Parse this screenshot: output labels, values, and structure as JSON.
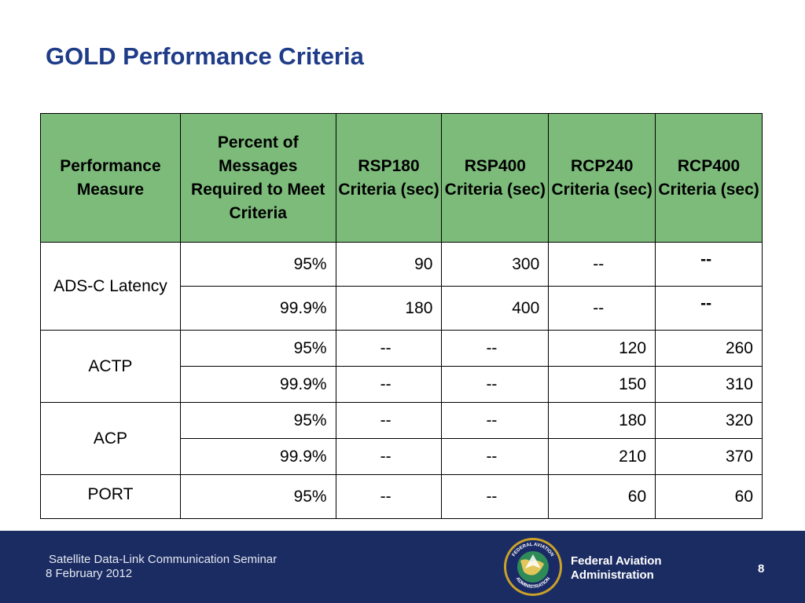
{
  "slide": {
    "title": "GOLD Performance Criteria"
  },
  "table": {
    "headers": [
      "Performance Measure",
      "Percent of Messages Required to Meet Criteria",
      "RSP180 Criteria (sec)",
      "RSP400 Criteria (sec)",
      "RCP240 Criteria (sec)",
      "RCP400 Criteria (sec)"
    ],
    "groups": [
      {
        "measure": "ADS-C Latency",
        "rows": [
          [
            "95%",
            "90",
            "300",
            "--",
            "--"
          ],
          [
            "99.9%",
            "180",
            "400",
            "--",
            "--"
          ]
        ]
      },
      {
        "measure": "ACTP",
        "rows": [
          [
            "95%",
            "--",
            "--",
            "120",
            "260"
          ],
          [
            "99.9%",
            "--",
            "--",
            "150",
            "310"
          ]
        ]
      },
      {
        "measure": "ACP",
        "rows": [
          [
            "95%",
            "--",
            "--",
            "180",
            "320"
          ],
          [
            "99.9%",
            "--",
            "--",
            "210",
            "370"
          ]
        ]
      },
      {
        "measure": "PORT",
        "rows": [
          [
            "95%",
            "--",
            "--",
            "60",
            "60"
          ]
        ]
      }
    ]
  },
  "footer": {
    "seminar": "Satellite Data-Link Communication Seminar",
    "date": "8 February 2012",
    "agency_line1": "Federal Aviation",
    "agency_line2": "Administration",
    "seal_text_top": "FEDERAL AVIATION",
    "seal_text_bottom": "ADMINISTRATION",
    "page_number": "8",
    "colors": {
      "band": "#1b2c63",
      "header_fill": "#7dbb7b",
      "title": "#1f3c88"
    }
  }
}
